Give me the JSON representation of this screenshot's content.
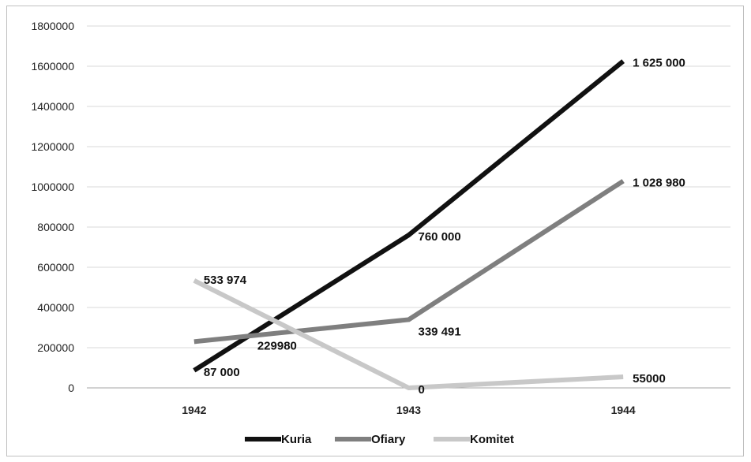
{
  "chart_data": {
    "type": "line",
    "categories": [
      "1942",
      "1943",
      "1944"
    ],
    "ylim": [
      0,
      1800000
    ],
    "yticks": [
      0,
      200000,
      400000,
      600000,
      800000,
      1000000,
      1200000,
      1400000,
      1600000,
      1800000
    ],
    "ytick_labels": [
      "0",
      "200000",
      "400000",
      "600000",
      "800000",
      "1000000",
      "1200000",
      "1400000",
      "1600000",
      "1800000"
    ],
    "grid": true,
    "legend_position": "bottom",
    "series": [
      {
        "name": "Kuria",
        "color": "#111111",
        "values": [
          87000,
          760000,
          1625000
        ],
        "labels": [
          "87 000",
          "760 000",
          "1 625 000"
        ]
      },
      {
        "name": "Ofiary",
        "color": "#7f7f7f",
        "values": [
          229980,
          339491,
          1028980
        ],
        "labels": [
          "229980",
          "339 491",
          "1 028 980"
        ]
      },
      {
        "name": "Komitet",
        "color": "#c8c8c8",
        "values": [
          533974,
          0,
          55000
        ],
        "labels": [
          "533 974",
          "0",
          "55000"
        ]
      }
    ]
  }
}
